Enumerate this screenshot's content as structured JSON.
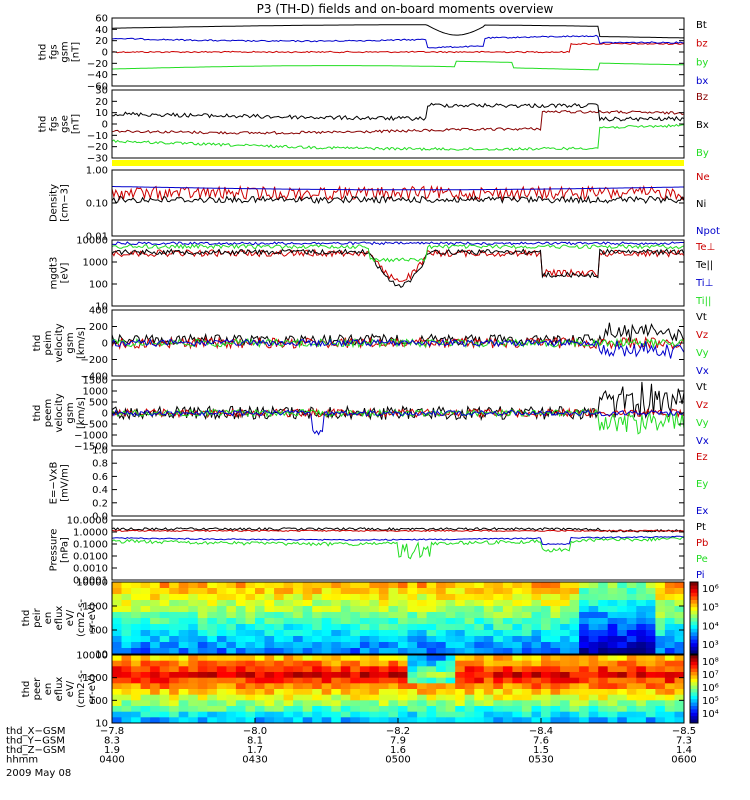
{
  "title": "P3 (TH-D) fields and on-board moments overview",
  "colors": {
    "black": "#000000",
    "red": "#cc0000",
    "green": "#22dd22",
    "blue": "#0000cc",
    "darkred": "#880000",
    "yellow": "#ffff00",
    "bg": "#ffffff"
  },
  "chart_data": [
    {
      "name": "fgs-gsm",
      "type": "line",
      "ylabel": [
        "thd",
        "fgs",
        "gsm",
        "[nT]"
      ],
      "ylim": [
        -60,
        60
      ],
      "yticks": [
        "60",
        "40",
        "20",
        "0",
        "−20",
        "−40",
        "−60"
      ],
      "series": [
        {
          "name": "Bt",
          "color": "#000000"
        },
        {
          "name": "bz",
          "color": "#cc0000"
        },
        {
          "name": "by",
          "color": "#22dd22"
        },
        {
          "name": "bx",
          "color": "#0000cc"
        }
      ]
    },
    {
      "name": "fgs-dsl",
      "type": "line",
      "ylabel": [
        "thd",
        "fgs",
        "gse",
        "[nT]"
      ],
      "ylim": [
        -30,
        30
      ],
      "yticks": [
        "30",
        "20",
        "10",
        "0",
        "−10",
        "−20",
        "−30"
      ],
      "series": [
        {
          "name": "Bz",
          "color": "#880000"
        },
        {
          "name": "Bx",
          "color": "#000000"
        },
        {
          "name": "By",
          "color": "#22dd22"
        }
      ]
    },
    {
      "name": "density",
      "type": "line",
      "ylabel": [
        "Density",
        "[cm−3]"
      ],
      "ylim": [
        0.01,
        1.0
      ],
      "yticks": [
        "1.00",
        "0.10",
        "0.01"
      ],
      "series": [
        {
          "name": "Ne",
          "color": "#cc0000"
        },
        {
          "name": "Ni",
          "color": "#000000"
        },
        {
          "name": "Npot",
          "color": "#0000cc"
        }
      ]
    },
    {
      "name": "temperature",
      "type": "line",
      "ylabel": [
        "mgdt3",
        "[eV]"
      ],
      "ylim": [
        10,
        10000
      ],
      "yticks": [
        "10000",
        "1000",
        "100",
        "10"
      ],
      "series": [
        {
          "name": "Te⊥",
          "color": "#cc0000"
        },
        {
          "name": "Te||",
          "color": "#000000"
        },
        {
          "name": "Ti⊥",
          "color": "#0000cc"
        },
        {
          "name": "Ti||",
          "color": "#22dd22"
        }
      ]
    },
    {
      "name": "peim-velocity",
      "type": "line",
      "ylabel": [
        "thd",
        "peim",
        "velocity",
        "gsm",
        "[km/s]"
      ],
      "ylim": [
        -400,
        400
      ],
      "yticks": [
        "400",
        "200",
        "0",
        "−200",
        "−400"
      ],
      "series": [
        {
          "name": "Vt",
          "color": "#000000"
        },
        {
          "name": "Vz",
          "color": "#cc0000"
        },
        {
          "name": "Vy",
          "color": "#22dd22"
        },
        {
          "name": "Vx",
          "color": "#0000cc"
        }
      ]
    },
    {
      "name": "peem-velocity",
      "type": "line",
      "ylabel": [
        "thd",
        "peem",
        "velocity",
        "gsm",
        "[km/s]"
      ],
      "ylim": [
        -1500,
        1500
      ],
      "yticks": [
        "1500",
        "1000",
        "500",
        "0",
        "−500",
        "−1000",
        "−1500"
      ],
      "series": [
        {
          "name": "Vt",
          "color": "#000000"
        },
        {
          "name": "Vz",
          "color": "#cc0000"
        },
        {
          "name": "Vy",
          "color": "#22dd22"
        },
        {
          "name": "Vx",
          "color": "#0000cc"
        }
      ]
    },
    {
      "name": "efield",
      "type": "line",
      "ylabel": [
        "E=−VxB",
        "[mV/m]"
      ],
      "ylim": [
        0,
        1.0
      ],
      "yticks": [
        "1.0",
        "0.8",
        "0.6",
        "0.4",
        "0.2",
        "0.0"
      ],
      "series": [
        {
          "name": "Ez",
          "color": "#cc0000"
        },
        {
          "name": "Ey",
          "color": "#22dd22"
        },
        {
          "name": "Ex",
          "color": "#0000cc"
        }
      ]
    },
    {
      "name": "pressure",
      "type": "line",
      "ylabel": [
        "Pressure",
        "[nPa]"
      ],
      "ylim": [
        0.0001,
        10
      ],
      "yticks": [
        "10.0000",
        "1.0000",
        "0.1000",
        "0.0100",
        "0.0010",
        "0.0001"
      ],
      "series": [
        {
          "name": "Pt",
          "color": "#000000"
        },
        {
          "name": "Pb",
          "color": "#cc0000"
        },
        {
          "name": "Pe",
          "color": "#22dd22"
        },
        {
          "name": "Pi",
          "color": "#0000cc"
        }
      ]
    },
    {
      "name": "peir-eflux",
      "type": "heatmap",
      "ylabel": [
        "thd",
        "peir",
        "en",
        "eflux",
        "eV/",
        "(cm2-s-",
        "sr-eV)"
      ],
      "ylim": [
        10,
        10000
      ],
      "yticks": [
        "10000",
        "1000",
        "100",
        "10"
      ],
      "colorbar": [
        "10⁶",
        "10⁵",
        "10⁴",
        "10³"
      ]
    },
    {
      "name": "peer-eflux",
      "type": "heatmap",
      "ylabel": [
        "thd",
        "peer",
        "en",
        "eflux",
        "eV/",
        "(cm2-s-",
        "sr-eV)"
      ],
      "ylim": [
        10,
        10000
      ],
      "yticks": [
        "10000",
        "1000",
        "100",
        "10"
      ],
      "colorbar": [
        "10⁸",
        "10⁷",
        "10⁶",
        "10⁵",
        "10⁴"
      ]
    }
  ],
  "xaxis": {
    "rows": [
      {
        "label": "thd_X−GSM",
        "values": [
          "−7.8",
          "−8.0",
          "−8.2",
          "−8.4",
          "−8.5"
        ]
      },
      {
        "label": "thd_Y−GSM",
        "values": [
          "8.3",
          "8.1",
          "7.9",
          "7.6",
          "7.3"
        ]
      },
      {
        "label": "thd_Z−GSM",
        "values": [
          "1.9",
          "1.7",
          "1.6",
          "1.5",
          "1.4"
        ]
      },
      {
        "label": "hhmm",
        "values": [
          "0400",
          "0430",
          "0500",
          "0530",
          "0600"
        ]
      }
    ],
    "date": "2009 May 08"
  }
}
